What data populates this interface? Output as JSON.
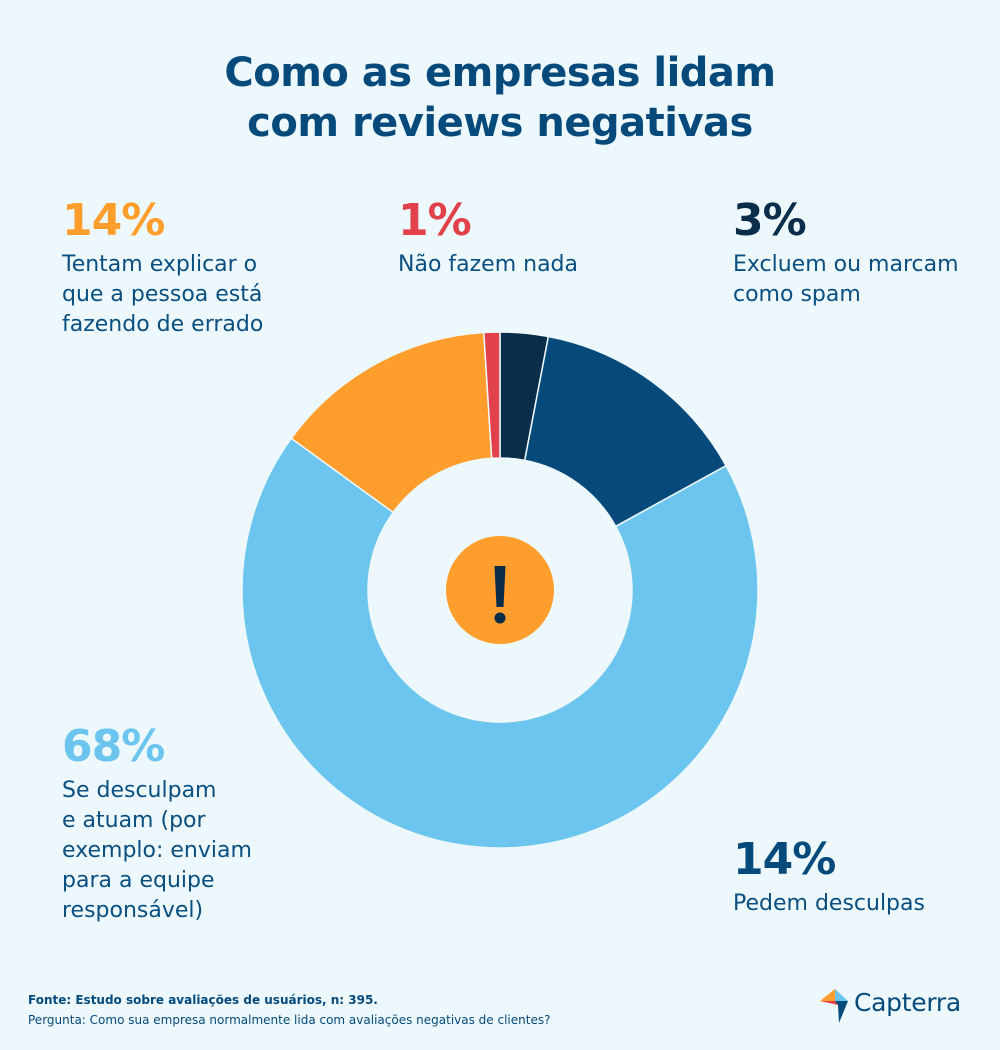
{
  "title": {
    "line1": "Como as empresas lidam",
    "line2": "com reviews negativas"
  },
  "chart_data": {
    "type": "pie",
    "donut": true,
    "title": "Como as empresas lidam com reviews negativas",
    "slices": [
      {
        "label": "Excluem ou marcam como spam",
        "value": 3,
        "color": "#0a2d4a"
      },
      {
        "label": "Pedem desculpas",
        "value": 14,
        "color": "#064a7c"
      },
      {
        "label": "Se desculpam e atuam (por exemplo: enviam para a equipe responsável)",
        "value": 68,
        "color": "#6cc5ee"
      },
      {
        "label": "Tentam explicar o que a pessoa está fazendo de errado",
        "value": 14,
        "color": "#ff9e2c"
      },
      {
        "label": "Não fazem nada",
        "value": 1,
        "color": "#e0414b"
      }
    ],
    "center_icon": "exclamation-icon",
    "center_icon_color": "#ff9e2c"
  },
  "callouts": {
    "orange": {
      "pct": "14%",
      "lines": [
        "Tentam explicar o",
        "que a pessoa está",
        "fazendo de errado"
      ],
      "color": "#ff9e2c"
    },
    "red": {
      "pct": "1%",
      "lines": [
        "Não fazem nada"
      ],
      "color": "#e0414b"
    },
    "dark": {
      "pct": "3%",
      "lines": [
        "Excluem ou marcam",
        "como spam"
      ],
      "color": "#0a2d4a"
    },
    "light": {
      "pct": "68%",
      "lines": [
        "Se desculpam",
        "e atuam (por",
        "exemplo: enviam",
        "para a equipe",
        "responsável)"
      ],
      "color": "#6cc5ee"
    },
    "blue": {
      "pct": "14%",
      "lines": [
        "Pedem desculpas"
      ],
      "color": "#064a7c"
    }
  },
  "footer": {
    "source": "Fonte: Estudo sobre avaliações de usuários, n: 395.",
    "question": "Pergunta: Como sua empresa normalmente lida com avaliações negativas de clientes?"
  },
  "logo": {
    "text": "Capterra",
    "icon": "capterra-arrow-icon"
  }
}
